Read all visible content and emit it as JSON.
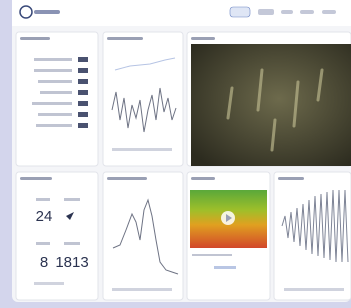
{
  "metrics": {
    "left_top": "24",
    "left_bottom": "8",
    "right_bottom": "1813"
  }
}
